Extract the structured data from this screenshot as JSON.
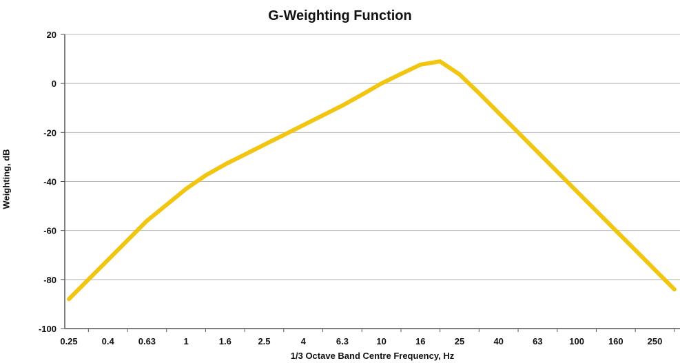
{
  "chart_data": {
    "type": "line",
    "title": "G-Weighting Function",
    "xlabel": "1/3 Octave Band Centre Frequency, Hz",
    "ylabel": "Weighting, dB",
    "x_tick_labels": [
      "0.25",
      "0.4",
      "0.63",
      "1",
      "1.6",
      "2.5",
      "4",
      "6.3",
      "10",
      "16",
      "25",
      "40",
      "63",
      "100",
      "160",
      "250"
    ],
    "y_ticks": [
      20,
      0,
      -20,
      -40,
      -60,
      -80,
      -100
    ],
    "ylim": [
      -100,
      20
    ],
    "x_scale": "1/3 octave bands (log)",
    "grid": "horizontal",
    "line_color": "#f2c511",
    "x": [
      0.25,
      0.315,
      0.4,
      0.5,
      0.63,
      0.8,
      1,
      1.25,
      1.6,
      2,
      2.5,
      3.15,
      4,
      5,
      6.3,
      8,
      10,
      12.5,
      16,
      20,
      25,
      31.5,
      40,
      50,
      63,
      80,
      100,
      125,
      160,
      200,
      250,
      315
    ],
    "y": [
      -88,
      -80,
      -72,
      -64,
      -56,
      -49.5,
      -43,
      -37.5,
      -33,
      -29,
      -25,
      -21,
      -17,
      -13,
      -9,
      -4.6,
      0,
      3.9,
      7.7,
      9.0,
      3.7,
      -4,
      -12,
      -20,
      -28,
      -36,
      -44,
      -52,
      -60,
      -68,
      -76,
      -84
    ]
  }
}
